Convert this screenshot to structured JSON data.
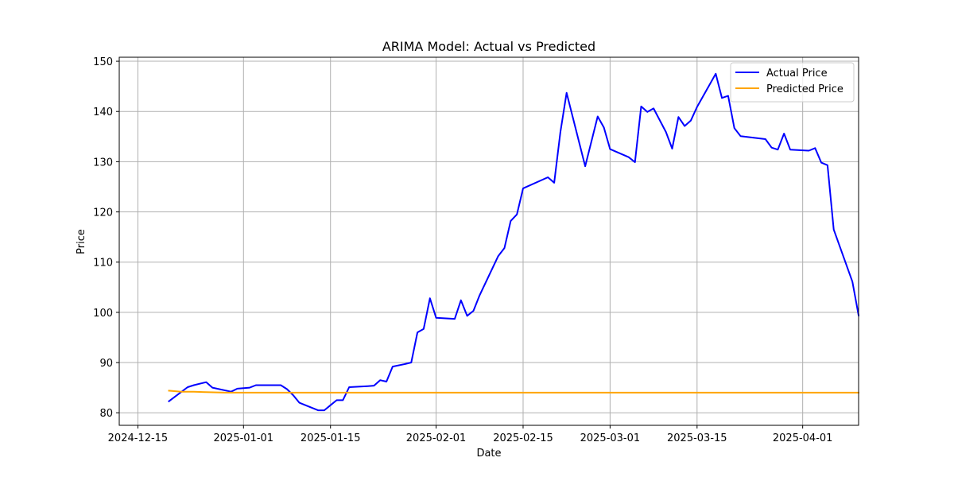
{
  "chart_data": {
    "type": "line",
    "title": "ARIMA Model: Actual vs Predicted",
    "xlabel": "Date",
    "ylabel": "Price",
    "x_axis": "date",
    "xlim": [
      "2024-12-12",
      "2025-04-10"
    ],
    "ylim": [
      77.5,
      150.8
    ],
    "x_ticks": [
      "2024-12-15",
      "2025-01-01",
      "2025-01-15",
      "2025-02-01",
      "2025-02-15",
      "2025-03-01",
      "2025-03-15",
      "2025-04-01"
    ],
    "x_tick_labels": [
      "2024-12-15",
      "2025-01-01",
      "2025-01-15",
      "2025-02-01",
      "2025-02-15",
      "2025-03-01",
      "2025-03-15",
      "2025-04-01"
    ],
    "y_ticks": [
      80,
      90,
      100,
      110,
      120,
      130,
      140,
      150
    ],
    "y_tick_labels": [
      "80",
      "90",
      "100",
      "110",
      "120",
      "130",
      "140",
      "150"
    ],
    "grid": true,
    "legend": "top-right",
    "series": [
      {
        "name": "Actual Price",
        "color": "#0000ff",
        "points": [
          [
            "2024-12-20",
            82.3
          ],
          [
            "2024-12-23",
            85.1
          ],
          [
            "2024-12-24",
            85.5
          ],
          [
            "2024-12-26",
            86.1
          ],
          [
            "2024-12-27",
            85.0
          ],
          [
            "2024-12-30",
            84.2
          ],
          [
            "2024-12-31",
            84.8
          ],
          [
            "2025-01-02",
            85.0
          ],
          [
            "2025-01-03",
            85.5
          ],
          [
            "2025-01-06",
            85.5
          ],
          [
            "2025-01-07",
            85.5
          ],
          [
            "2025-01-08",
            84.7
          ],
          [
            "2025-01-09",
            83.5
          ],
          [
            "2025-01-10",
            82.0
          ],
          [
            "2025-01-13",
            80.5
          ],
          [
            "2025-01-14",
            80.5
          ],
          [
            "2025-01-15",
            81.5
          ],
          [
            "2025-01-16",
            82.5
          ],
          [
            "2025-01-17",
            82.5
          ],
          [
            "2025-01-18",
            85.1
          ],
          [
            "2025-01-21",
            85.3
          ],
          [
            "2025-01-22",
            85.4
          ],
          [
            "2025-01-23",
            86.5
          ],
          [
            "2025-01-24",
            86.2
          ],
          [
            "2025-01-25",
            89.2
          ],
          [
            "2025-01-27",
            89.7
          ],
          [
            "2025-01-28",
            90.0
          ],
          [
            "2025-01-29",
            96.0
          ],
          [
            "2025-01-30",
            96.7
          ],
          [
            "2025-01-31",
            102.8
          ],
          [
            "2025-02-01",
            98.9
          ],
          [
            "2025-02-04",
            98.7
          ],
          [
            "2025-02-05",
            102.4
          ],
          [
            "2025-02-06",
            99.3
          ],
          [
            "2025-02-07",
            100.3
          ],
          [
            "2025-02-08",
            103.4
          ],
          [
            "2025-02-11",
            111.2
          ],
          [
            "2025-02-12",
            112.8
          ],
          [
            "2025-02-13",
            118.2
          ],
          [
            "2025-02-14",
            119.5
          ],
          [
            "2025-02-15",
            124.7
          ],
          [
            "2025-02-19",
            126.9
          ],
          [
            "2025-02-20",
            125.8
          ],
          [
            "2025-02-21",
            135.9
          ],
          [
            "2025-02-22",
            143.7
          ],
          [
            "2025-02-25",
            129.1
          ],
          [
            "2025-02-27",
            139.0
          ],
          [
            "2025-02-28",
            136.8
          ],
          [
            "2025-03-01",
            132.5
          ],
          [
            "2025-03-04",
            130.9
          ],
          [
            "2025-03-05",
            129.9
          ],
          [
            "2025-03-06",
            141.0
          ],
          [
            "2025-03-07",
            139.9
          ],
          [
            "2025-03-08",
            140.6
          ],
          [
            "2025-03-10",
            135.9
          ],
          [
            "2025-03-11",
            132.6
          ],
          [
            "2025-03-12",
            138.9
          ],
          [
            "2025-03-13",
            137.1
          ],
          [
            "2025-03-14",
            138.2
          ],
          [
            "2025-03-15",
            140.9
          ],
          [
            "2025-03-18",
            147.5
          ],
          [
            "2025-03-19",
            142.7
          ],
          [
            "2025-03-20",
            143.1
          ],
          [
            "2025-03-21",
            136.7
          ],
          [
            "2025-03-22",
            135.1
          ],
          [
            "2025-03-26",
            134.5
          ],
          [
            "2025-03-27",
            132.8
          ],
          [
            "2025-03-28",
            132.4
          ],
          [
            "2025-03-29",
            135.6
          ],
          [
            "2025-03-30",
            132.4
          ],
          [
            "2025-04-02",
            132.2
          ],
          [
            "2025-04-03",
            132.7
          ],
          [
            "2025-04-04",
            129.8
          ],
          [
            "2025-04-05",
            129.3
          ],
          [
            "2025-04-06",
            116.5
          ],
          [
            "2025-04-09",
            106.1
          ],
          [
            "2025-04-10",
            99.4
          ]
        ]
      },
      {
        "name": "Predicted Price",
        "color": "#ffa500",
        "points": [
          [
            "2024-12-20",
            84.4
          ],
          [
            "2024-12-22",
            84.2
          ],
          [
            "2024-12-24",
            84.2
          ],
          [
            "2024-12-26",
            84.1
          ],
          [
            "2024-12-29",
            84.0
          ],
          [
            "2025-01-05",
            84.0
          ],
          [
            "2025-02-15",
            84.0
          ],
          [
            "2025-03-15",
            84.0
          ],
          [
            "2025-04-10",
            84.0
          ]
        ]
      }
    ]
  }
}
